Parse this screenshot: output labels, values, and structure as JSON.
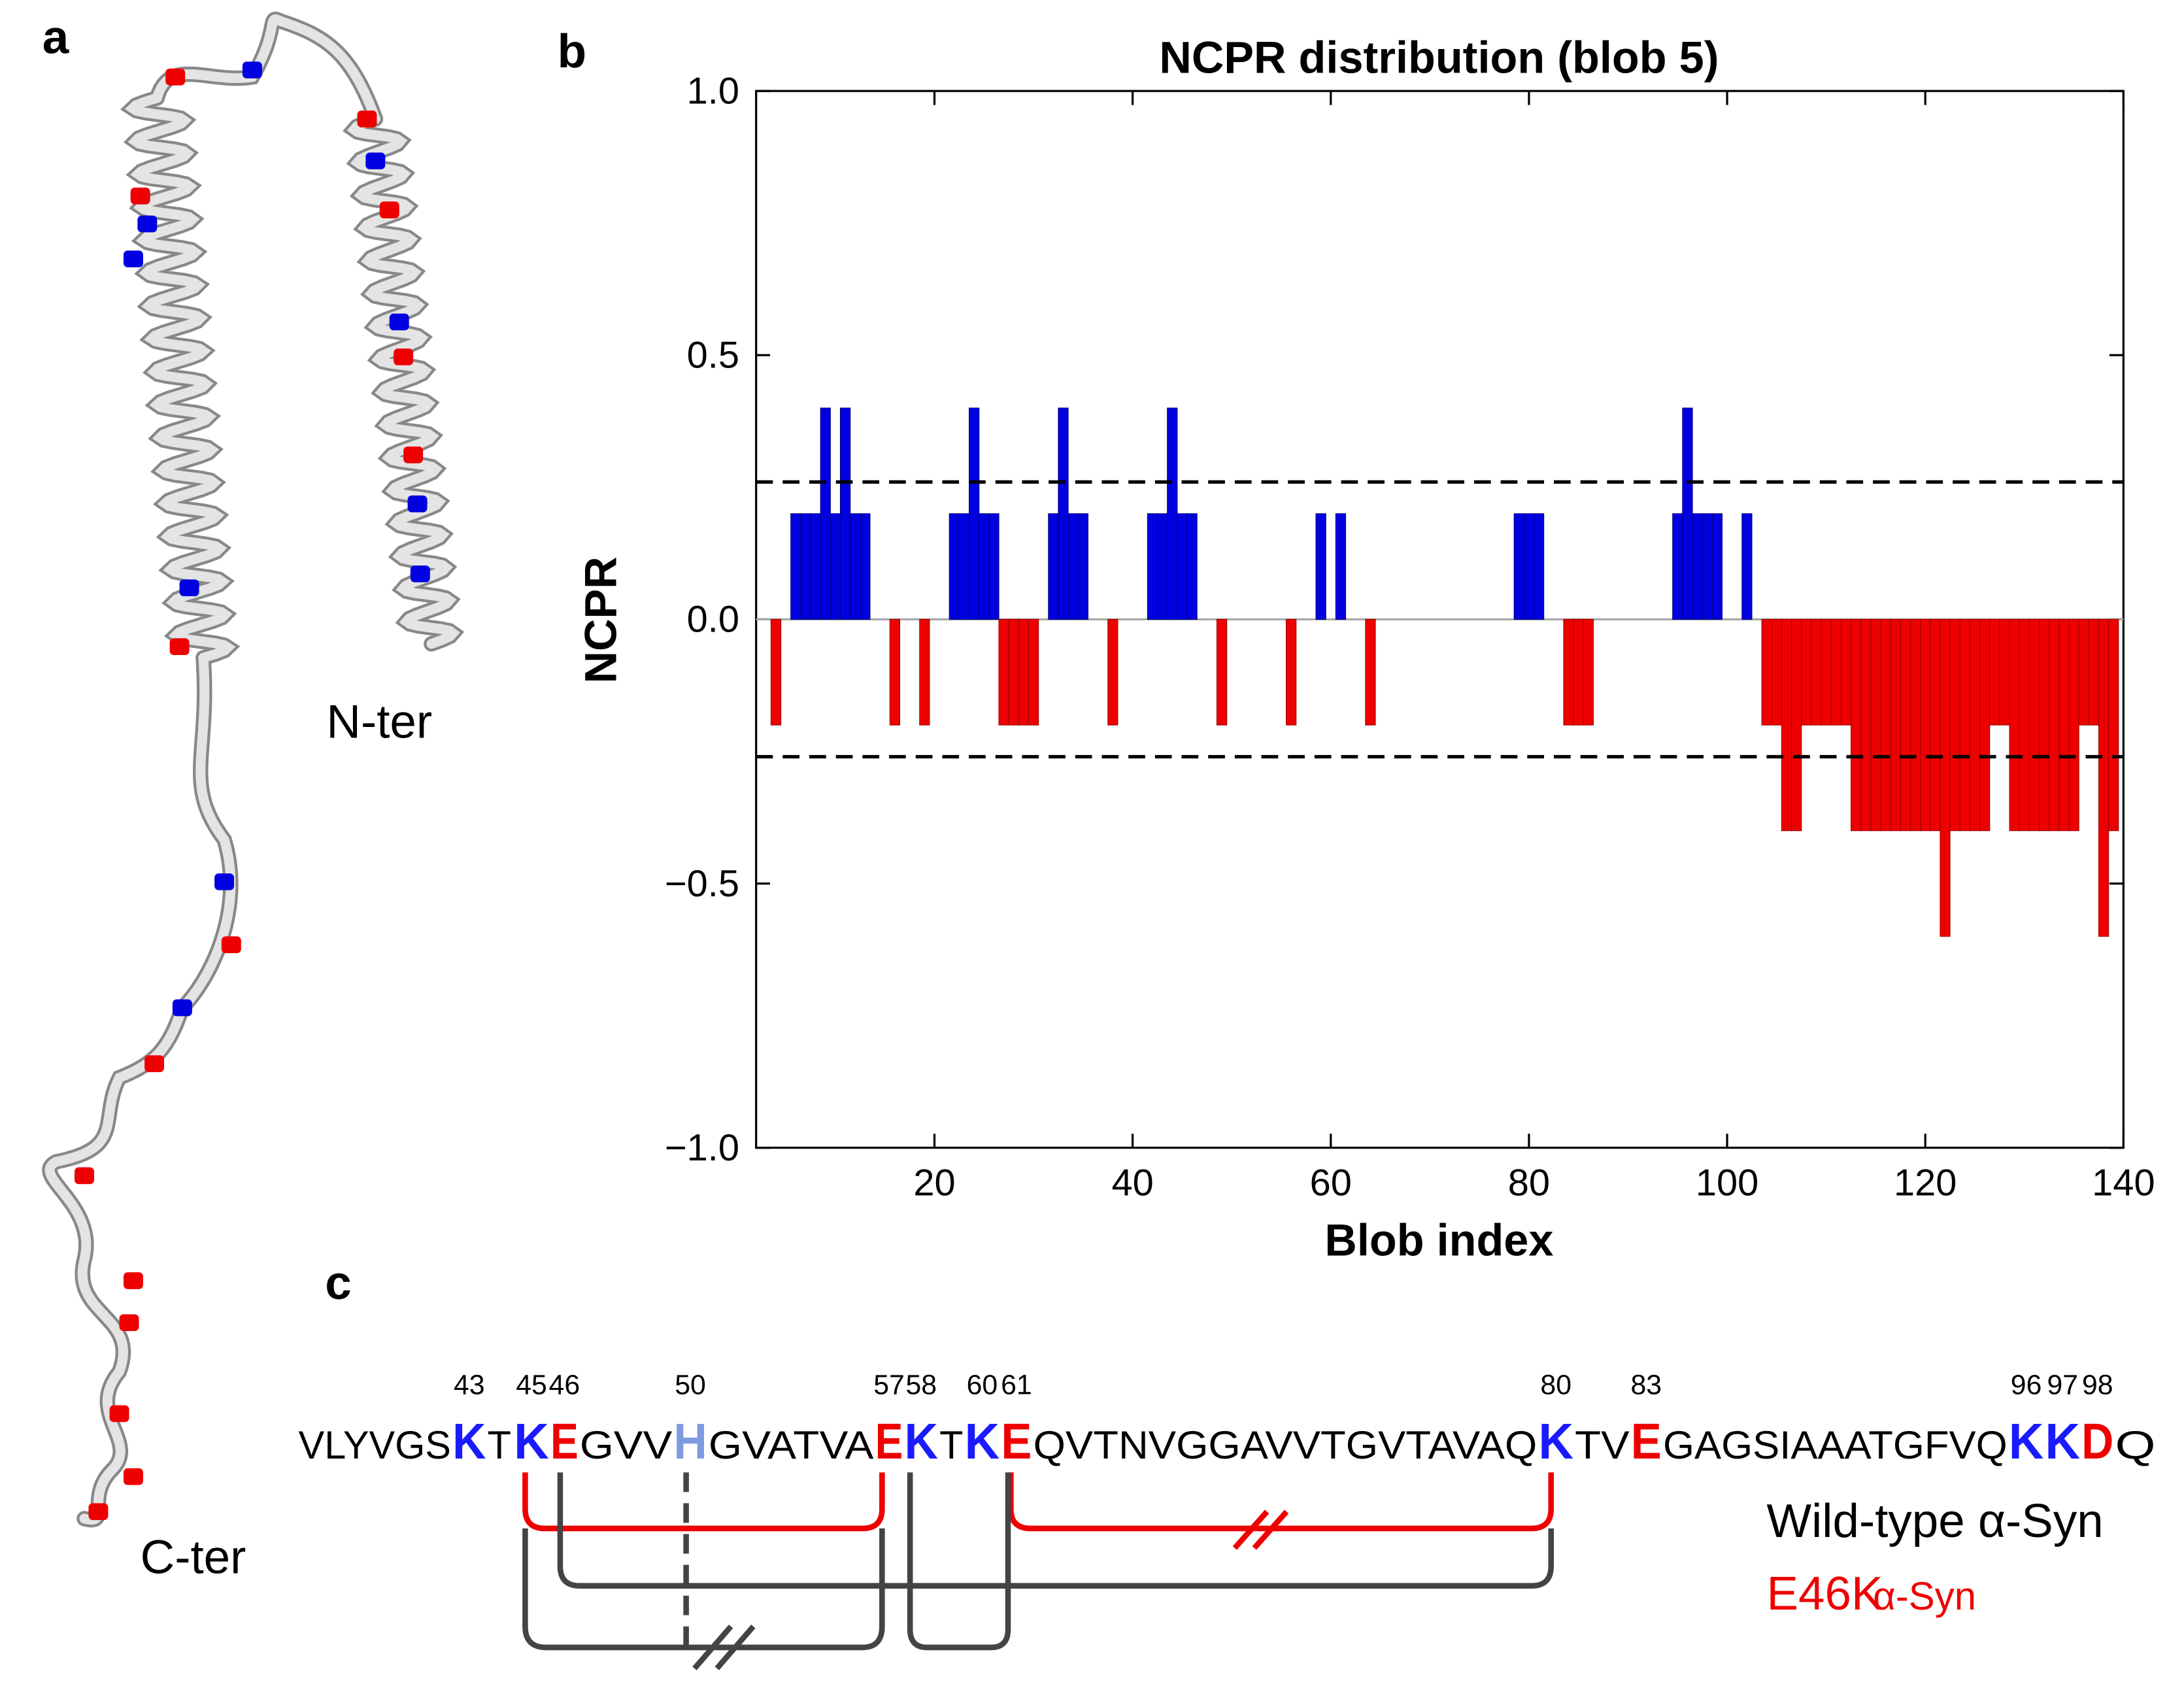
{
  "panels": {
    "a": "a",
    "b": "b",
    "c": "c"
  },
  "structure": {
    "n_terminus": "N-ter",
    "c_terminus": "C-ter"
  },
  "chart_data": {
    "type": "bar",
    "title": "NCPR distribution (blob 5)",
    "x_label": "Blob index",
    "y_label": "NCPR",
    "x": [
      4,
      6,
      7,
      8,
      9,
      10,
      11,
      12,
      13,
      16,
      19,
      22,
      23,
      24,
      25,
      26,
      27,
      28,
      29,
      30,
      32,
      33,
      34,
      35,
      38,
      42,
      43,
      44,
      45,
      46,
      49,
      56,
      59,
      61,
      64,
      79,
      80,
      81,
      84,
      85,
      86,
      95,
      96,
      97,
      98,
      99,
      102,
      104,
      105,
      106,
      107,
      108,
      109,
      110,
      111,
      112,
      113,
      114,
      115,
      116,
      117,
      118,
      119,
      120,
      121,
      122,
      123,
      124,
      125,
      126,
      127,
      128,
      129,
      130,
      131,
      132,
      133,
      134,
      135,
      136,
      137,
      138,
      139
    ],
    "values": [
      -0.2,
      0.2,
      0.2,
      0.2,
      0.4,
      0.2,
      0.4,
      0.2,
      0.2,
      -0.2,
      -0.2,
      0.2,
      0.2,
      0.4,
      0.2,
      0.2,
      -0.2,
      -0.2,
      -0.2,
      -0.2,
      0.2,
      0.4,
      0.2,
      0.2,
      -0.2,
      0.2,
      0.2,
      0.4,
      0.2,
      0.2,
      -0.2,
      -0.2,
      0.2,
      0.2,
      -0.2,
      0.2,
      0.2,
      0.2,
      -0.2,
      -0.2,
      -0.2,
      0.2,
      0.4,
      0.2,
      0.2,
      0.2,
      0.2,
      -0.2,
      -0.2,
      -0.4,
      -0.4,
      -0.2,
      -0.2,
      -0.2,
      -0.2,
      -0.2,
      -0.4,
      -0.4,
      -0.4,
      -0.4,
      -0.4,
      -0.4,
      -0.4,
      -0.4,
      -0.4,
      -0.6,
      -0.4,
      -0.4,
      -0.4,
      -0.4,
      -0.2,
      -0.2,
      -0.4,
      -0.4,
      -0.4,
      -0.4,
      -0.4,
      -0.4,
      -0.4,
      -0.2,
      -0.2,
      -0.6,
      -0.4
    ],
    "positive_color": "#0000e0",
    "negative_color": "#ee0000",
    "reference_lines": [
      0.26,
      -0.26
    ],
    "xlim": [
      2,
      140
    ],
    "xticks": [
      20,
      40,
      60,
      80,
      100,
      120,
      140
    ],
    "ylim": [
      -1.0,
      1.0
    ],
    "yticks": [
      {
        "value": -1.0,
        "label": "−1.0"
      },
      {
        "value": -0.5,
        "label": "−0.5"
      },
      {
        "value": 0.0,
        "label": "0.0"
      },
      {
        "value": 0.5,
        "label": "0.5"
      },
      {
        "value": 1.0,
        "label": "1.0"
      }
    ]
  },
  "sequence": [
    {
      "text": "VLYVGS"
    },
    {
      "text": "K",
      "number": "43",
      "color": "#1a1aff"
    },
    {
      "text": "T"
    },
    {
      "text": "K",
      "number": "45",
      "color": "#1a1aff"
    },
    {
      "text": "E",
      "number": "46",
      "color": "#ee0000"
    },
    {
      "text": "GVV"
    },
    {
      "text": "H",
      "number": "50",
      "color": "#7f9be0"
    },
    {
      "text": "GVATVA"
    },
    {
      "text": "E",
      "number": "57",
      "color": "#ee0000"
    },
    {
      "text": "K",
      "number": "58",
      "color": "#1a1aff"
    },
    {
      "text": "T"
    },
    {
      "text": "K",
      "number": "60",
      "color": "#1a1aff"
    },
    {
      "text": "E",
      "number": "61",
      "color": "#ee0000"
    },
    {
      "text": "QVTNVGGAVVTGVTAVAQ"
    },
    {
      "text": "K",
      "number": "80",
      "color": "#1a1aff"
    },
    {
      "text": "TV"
    },
    {
      "text": "E",
      "number": "83",
      "color": "#ee0000"
    },
    {
      "text": "GAGSIAAATGFVQ"
    },
    {
      "text": "K",
      "number": "96",
      "color": "#1a1aff"
    },
    {
      "text": "K",
      "number": "97",
      "color": "#1a1aff"
    },
    {
      "text": "D",
      "number": "98",
      "color": "#ee0000"
    },
    {
      "text": "Q"
    }
  ],
  "legend": {
    "wild_type": "Wild-type α-Syn",
    "mutant": "E46K",
    "mutant_suffix": "α-Syn",
    "mutant_color": "#ee0000"
  }
}
